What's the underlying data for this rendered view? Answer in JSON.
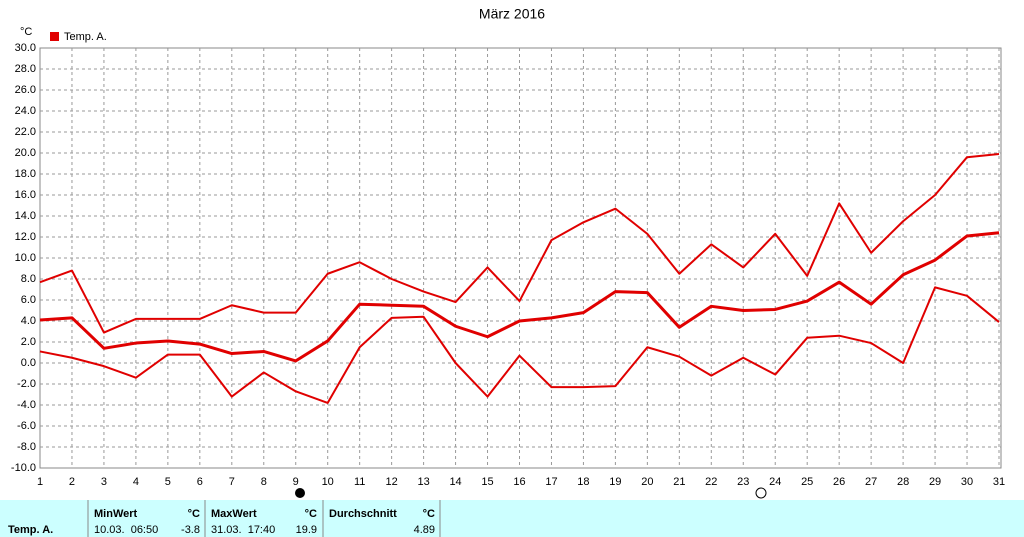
{
  "chart_data": {
    "type": "line",
    "title": "März 2016",
    "y_unit": "°C",
    "legend": "Temp. A.",
    "color": "#e00000",
    "xlim": [
      1,
      31
    ],
    "xticks": [
      1,
      2,
      3,
      4,
      5,
      6,
      7,
      8,
      9,
      10,
      11,
      12,
      13,
      14,
      15,
      16,
      17,
      18,
      19,
      20,
      21,
      22,
      23,
      24,
      25,
      26,
      27,
      28,
      29,
      30,
      31
    ],
    "x": [
      1,
      2,
      3,
      4,
      5,
      6,
      7,
      8,
      9,
      10,
      11,
      12,
      13,
      14,
      15,
      16,
      17,
      18,
      19,
      20,
      21,
      22,
      23,
      24,
      25,
      26,
      27,
      28,
      29,
      30,
      31
    ],
    "ylim": [
      -10,
      30
    ],
    "yticks": [
      {
        "value": -10,
        "label": "-10.0"
      },
      {
        "value": -8,
        "label": "-8.0"
      },
      {
        "value": -6,
        "label": "-6.0"
      },
      {
        "value": -4,
        "label": "-4.0"
      },
      {
        "value": -2,
        "label": "-2.0"
      },
      {
        "value": 0,
        "label": "0.0"
      },
      {
        "value": 2,
        "label": "2.0"
      },
      {
        "value": 4,
        "label": "4.0"
      },
      {
        "value": 6,
        "label": "6.0"
      },
      {
        "value": 8,
        "label": "8.0"
      },
      {
        "value": 10,
        "label": "10.0"
      },
      {
        "value": 12,
        "label": "12.0"
      },
      {
        "value": 14,
        "label": "14.0"
      },
      {
        "value": 16,
        "label": "16.0"
      },
      {
        "value": 18,
        "label": "18.0"
      },
      {
        "value": 20,
        "label": "20.0"
      },
      {
        "value": 22,
        "label": "22.0"
      },
      {
        "value": 24,
        "label": "24.0"
      },
      {
        "value": 26,
        "label": "26.0"
      },
      {
        "value": 28,
        "label": "28.0"
      },
      {
        "value": 30,
        "label": "30.0"
      }
    ],
    "grid": true,
    "series": [
      {
        "color": "#e00000",
        "width": 2,
        "values": [
          7.7,
          8.8,
          2.9,
          4.2,
          4.2,
          4.2,
          5.5,
          4.8,
          4.8,
          8.5,
          9.6,
          8.0,
          6.8,
          5.8,
          9.1,
          5.9,
          11.7,
          13.4,
          14.7,
          12.3,
          8.5,
          11.3,
          9.1,
          12.3,
          8.3,
          15.2,
          10.5,
          13.5,
          16.0,
          19.6,
          19.9
        ]
      },
      {
        "color": "#e00000",
        "width": 3,
        "values": [
          4.1,
          4.3,
          1.4,
          1.9,
          2.1,
          1.8,
          0.9,
          1.1,
          0.2,
          2.1,
          5.6,
          5.5,
          5.4,
          3.5,
          2.5,
          4.0,
          4.3,
          4.8,
          6.8,
          6.7,
          3.4,
          5.4,
          5.0,
          5.1,
          5.9,
          7.7,
          5.6,
          8.4,
          9.8,
          12.1,
          12.4
        ]
      },
      {
        "color": "#e00000",
        "width": 2,
        "values": [
          1.1,
          0.5,
          -0.3,
          -1.4,
          0.8,
          0.8,
          -3.2,
          -0.9,
          -2.7,
          -3.8,
          1.5,
          4.3,
          4.4,
          0.0,
          -3.2,
          0.7,
          -2.3,
          -2.3,
          -2.2,
          1.5,
          0.6,
          -1.2,
          0.5,
          -1.1,
          2.4,
          2.6,
          1.9,
          0.0,
          7.2,
          6.4,
          3.9
        ]
      }
    ]
  },
  "footer": {
    "row_label": "Temp. A.",
    "cells": [
      {
        "header": "MinWert",
        "unit": "°C",
        "when": "10.03.  06:50",
        "value": "-3.8"
      },
      {
        "header": "MaxWert",
        "unit": "°C",
        "when": "31.03.  17:40",
        "value": "19.9"
      },
      {
        "header": "Durchschnitt",
        "unit": "°C",
        "value": "4.89"
      }
    ]
  }
}
